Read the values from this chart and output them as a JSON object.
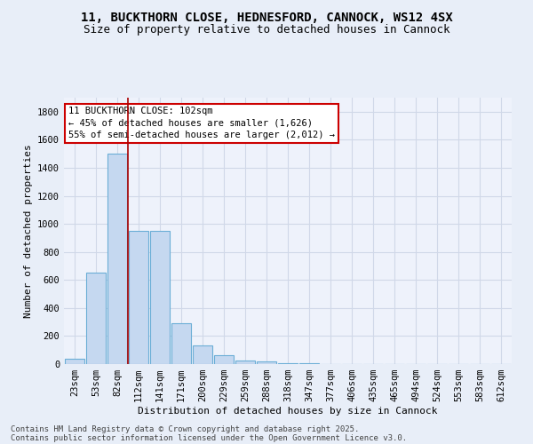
{
  "title": "11, BUCKTHORN CLOSE, HEDNESFORD, CANNOCK, WS12 4SX",
  "subtitle": "Size of property relative to detached houses in Cannock",
  "xlabel": "Distribution of detached houses by size in Cannock",
  "ylabel": "Number of detached properties",
  "categories": [
    "23sqm",
    "53sqm",
    "82sqm",
    "112sqm",
    "141sqm",
    "171sqm",
    "200sqm",
    "229sqm",
    "259sqm",
    "288sqm",
    "318sqm",
    "347sqm",
    "377sqm",
    "406sqm",
    "435sqm",
    "465sqm",
    "494sqm",
    "524sqm",
    "553sqm",
    "583sqm",
    "612sqm"
  ],
  "values": [
    40,
    650,
    1500,
    950,
    950,
    290,
    130,
    65,
    25,
    20,
    8,
    5,
    3,
    2,
    1,
    1,
    0,
    0,
    0,
    0,
    0
  ],
  "bar_color": "#c5d8f0",
  "bar_edge_color": "#6baed6",
  "background_color": "#e8eef8",
  "plot_bg_color": "#eef2fb",
  "grid_color": "#d0d8e8",
  "red_line_x": 2.5,
  "annotation_text_line1": "11 BUCKTHORN CLOSE: 102sqm",
  "annotation_text_line2": "← 45% of detached houses are smaller (1,626)",
  "annotation_text_line3": "55% of semi-detached houses are larger (2,012) →",
  "annotation_box_color": "#ffffff",
  "annotation_box_edge_color": "#cc0000",
  "ylim": [
    0,
    1900
  ],
  "yticks": [
    0,
    200,
    400,
    600,
    800,
    1000,
    1200,
    1400,
    1600,
    1800
  ],
  "footer_line1": "Contains HM Land Registry data © Crown copyright and database right 2025.",
  "footer_line2": "Contains public sector information licensed under the Open Government Licence v3.0.",
  "title_fontsize": 10,
  "subtitle_fontsize": 9,
  "axis_label_fontsize": 8,
  "tick_fontsize": 7.5,
  "annotation_fontsize": 7.5,
  "footer_fontsize": 6.5
}
